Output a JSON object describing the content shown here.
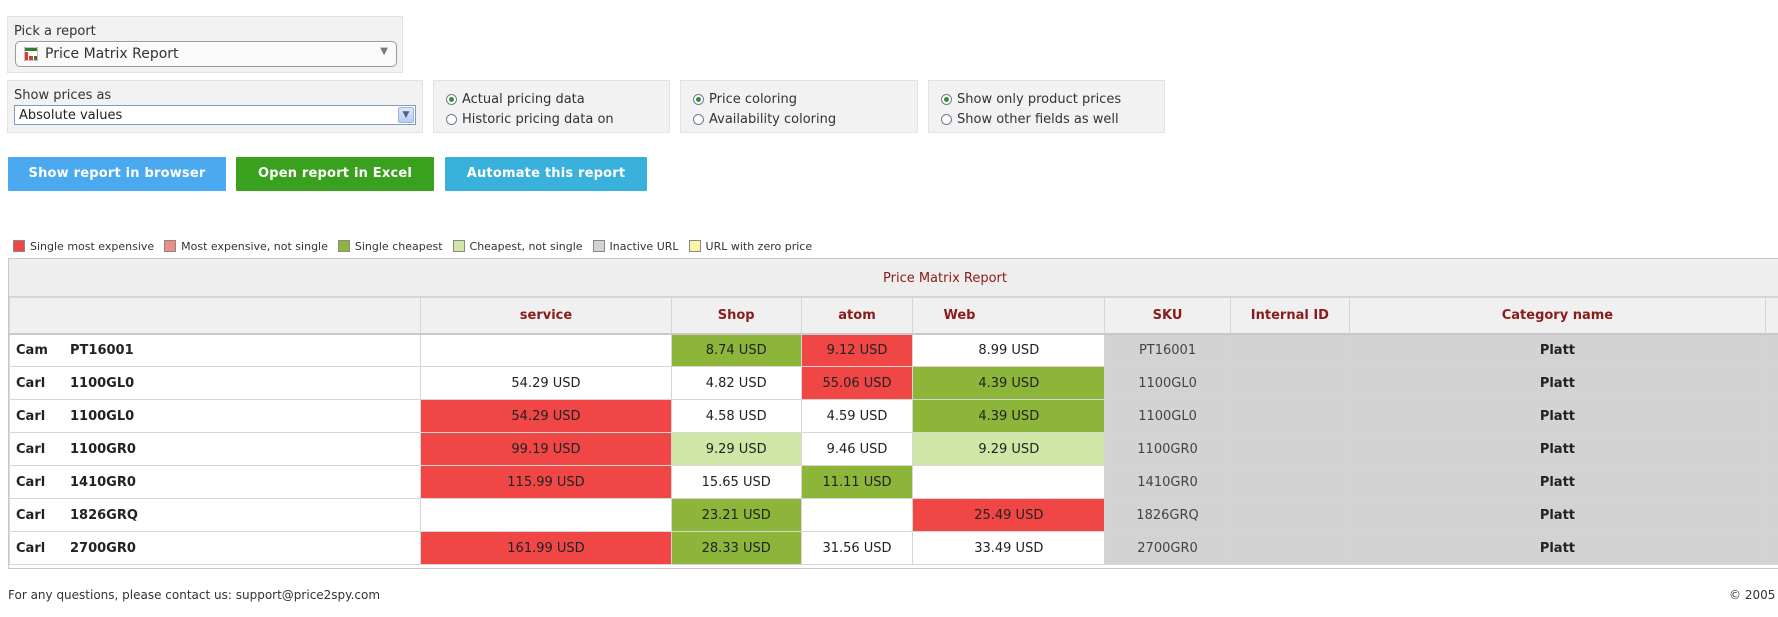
{
  "report_picker": {
    "label": "Pick a report",
    "selected": "Price Matrix Report"
  },
  "show_prices": {
    "label": "Show prices as",
    "selected": "Absolute values"
  },
  "data_source": {
    "options": [
      {
        "label": "Actual pricing data",
        "checked": true
      },
      {
        "label": "Historic pricing data on",
        "checked": false
      }
    ]
  },
  "coloring": {
    "options": [
      {
        "label": "Price coloring",
        "checked": true
      },
      {
        "label": "Availability coloring",
        "checked": false
      }
    ]
  },
  "fields": {
    "options": [
      {
        "label": "Show only product prices",
        "checked": true
      },
      {
        "label": "Show other fields as well",
        "checked": false
      }
    ]
  },
  "buttons": {
    "show_browser": "Show report in browser",
    "open_excel": "Open report in Excel",
    "automate": "Automate this report"
  },
  "colors": {
    "btn_browser": "#4aa9ef",
    "btn_excel": "#3aa11f",
    "btn_automate": "#3ab0dc",
    "single_most_expensive": "#f14646",
    "most_expensive_not_single": "#f08b8b",
    "single_cheapest": "#8db53a",
    "cheapest_not_single": "#cfe6a6",
    "inactive_url": "#d3d3d3",
    "zero_price": "#fbf5a9",
    "title_text": "#8b1b1b"
  },
  "legend": [
    {
      "label": "Single most expensive",
      "color": "#f14646"
    },
    {
      "label": "Most expensive, not single",
      "color": "#f08b8b"
    },
    {
      "label": "Single cheapest",
      "color": "#8db53a"
    },
    {
      "label": "Cheapest, not single",
      "color": "#cfe6a6"
    },
    {
      "label": "Inactive URL",
      "color": "#d3d3d3"
    },
    {
      "label": "URL with zero price",
      "color": "#fbf5a9"
    }
  ],
  "report": {
    "title": "Price Matrix Report",
    "columns": [
      "",
      "service",
      "Shop",
      "atom",
      "Web",
      "SKU",
      "Internal ID",
      "Category name",
      ""
    ],
    "rows": [
      {
        "brand": "Cam",
        "model": "PT16001",
        "prices": [
          {
            "v": "",
            "c": ""
          },
          {
            "v": "8.74 USD",
            "c": "single_cheapest"
          },
          {
            "v": "9.12 USD",
            "c": "single_most_expensive"
          },
          {
            "v": "8.99 USD",
            "c": ""
          }
        ],
        "sku": "PT16001",
        "internal_id": "",
        "category": "Platt"
      },
      {
        "brand": "Carl",
        "model": "1100GL0",
        "prices": [
          {
            "v": "54.29 USD",
            "c": ""
          },
          {
            "v": "4.82 USD",
            "c": ""
          },
          {
            "v": "55.06 USD",
            "c": "single_most_expensive"
          },
          {
            "v": "4.39 USD",
            "c": "single_cheapest"
          }
        ],
        "sku": "1100GL0",
        "internal_id": "",
        "category": "Platt"
      },
      {
        "brand": "Carl",
        "model": "1100GL0",
        "prices": [
          {
            "v": "54.29 USD",
            "c": "single_most_expensive"
          },
          {
            "v": "4.58 USD",
            "c": ""
          },
          {
            "v": "4.59 USD",
            "c": ""
          },
          {
            "v": "4.39 USD",
            "c": "single_cheapest"
          }
        ],
        "sku": "1100GL0",
        "internal_id": "",
        "category": "Platt"
      },
      {
        "brand": "Carl",
        "model": "1100GR0",
        "prices": [
          {
            "v": "99.19 USD",
            "c": "single_most_expensive"
          },
          {
            "v": "9.29 USD",
            "c": "cheapest_not_single"
          },
          {
            "v": "9.46 USD",
            "c": ""
          },
          {
            "v": "9.29 USD",
            "c": "cheapest_not_single"
          }
        ],
        "sku": "1100GR0",
        "internal_id": "",
        "category": "Platt"
      },
      {
        "brand": "Carl",
        "model": "1410GR0",
        "prices": [
          {
            "v": "115.99 USD",
            "c": "single_most_expensive"
          },
          {
            "v": "15.65 USD",
            "c": ""
          },
          {
            "v": "11.11 USD",
            "c": "single_cheapest"
          },
          {
            "v": "",
            "c": ""
          }
        ],
        "sku": "1410GR0",
        "internal_id": "",
        "category": "Platt"
      },
      {
        "brand": "Carl",
        "model": "1826GRQ",
        "prices": [
          {
            "v": "",
            "c": ""
          },
          {
            "v": "23.21 USD",
            "c": "single_cheapest"
          },
          {
            "v": "",
            "c": ""
          },
          {
            "v": "25.49 USD",
            "c": "single_most_expensive"
          }
        ],
        "sku": "1826GRQ",
        "internal_id": "",
        "category": "Platt"
      },
      {
        "brand": "Carl",
        "model": "2700GR0",
        "prices": [
          {
            "v": "161.99 USD",
            "c": "single_most_expensive"
          },
          {
            "v": "28.33 USD",
            "c": "single_cheapest"
          },
          {
            "v": "31.56 USD",
            "c": ""
          },
          {
            "v": "33.49 USD",
            "c": ""
          }
        ],
        "sku": "2700GR0",
        "internal_id": "",
        "category": "Platt"
      }
    ]
  },
  "footer": {
    "contact": "For any questions, please contact us: support@price2spy.com",
    "copyright": "© 2005"
  }
}
